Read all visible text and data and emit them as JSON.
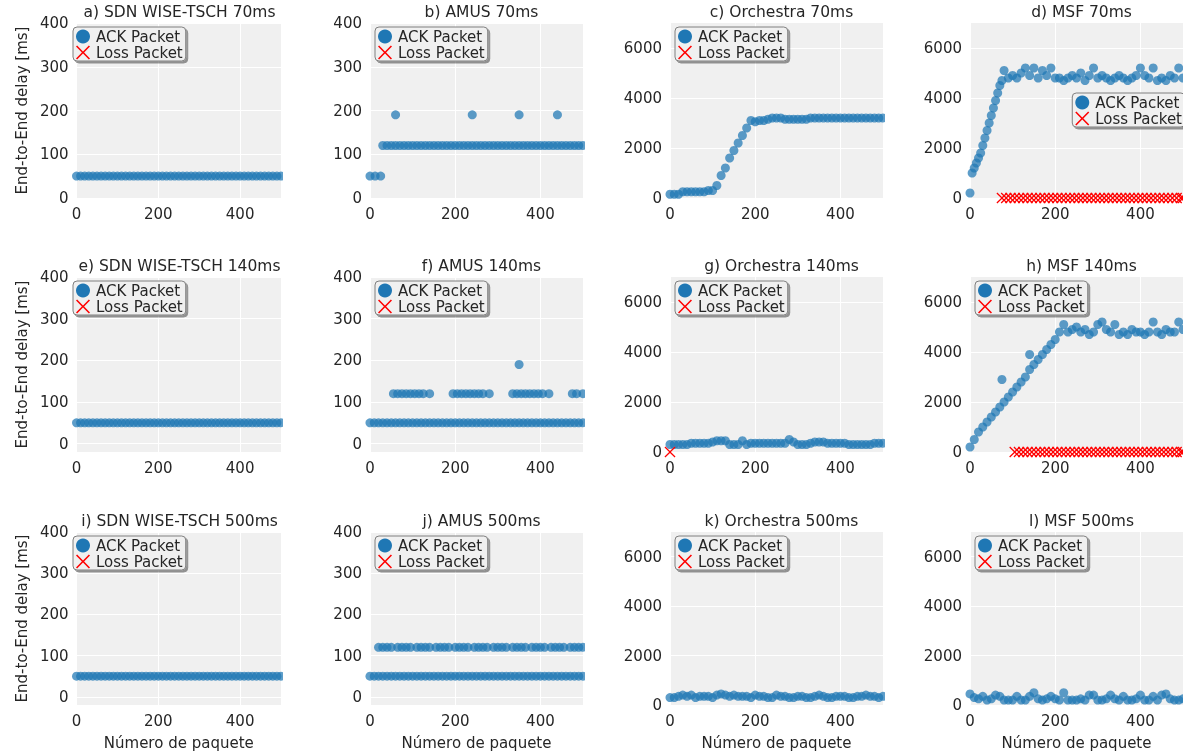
{
  "chart_data": [
    {
      "type": "scatter",
      "title": "a) SDN WISE-TSCH 70ms",
      "ylabel": "End-to-End delay [ms]",
      "xlim": [
        0,
        500
      ],
      "xticks": [
        0,
        200,
        400
      ],
      "ylim": [
        0,
        400
      ],
      "yticks": [
        0,
        100,
        200,
        300,
        400
      ],
      "grid": true,
      "legend": "top left",
      "series": [
        {
          "name": "ACK Packet",
          "color": "#1f77b4",
          "marker": "circle",
          "x": [
            0,
            10,
            20,
            30,
            40,
            50,
            60,
            70,
            80,
            90,
            100,
            110,
            120,
            130,
            140,
            150,
            160,
            170,
            180,
            190,
            200,
            210,
            220,
            230,
            240,
            250,
            260,
            270,
            280,
            290,
            300,
            310,
            320,
            330,
            340,
            350,
            360,
            370,
            380,
            390,
            400,
            410,
            420,
            430,
            440,
            450,
            460,
            470,
            480,
            490,
            500
          ],
          "values": [
            50,
            50,
            50,
            50,
            50,
            50,
            50,
            50,
            50,
            50,
            50,
            50,
            50,
            50,
            50,
            50,
            50,
            50,
            50,
            50,
            50,
            50,
            50,
            50,
            50,
            50,
            50,
            50,
            50,
            50,
            50,
            50,
            50,
            50,
            50,
            50,
            50,
            50,
            50,
            50,
            50,
            50,
            50,
            50,
            50,
            50,
            50,
            50,
            50,
            50,
            50
          ]
        },
        {
          "name": "Loss Packet",
          "color": "#ff0000",
          "marker": "cross"
        }
      ]
    },
    {
      "type": "scatter",
      "title": "b) AMUS 70ms",
      "xlim": [
        0,
        500
      ],
      "xticks": [
        0,
        200,
        400
      ],
      "ylim": [
        0,
        400
      ],
      "yticks": [
        0,
        100,
        200,
        300,
        400
      ],
      "grid": true,
      "legend": "top left",
      "series": [
        {
          "name": "ACK Packet",
          "color": "#1f77b4",
          "marker": "circle",
          "x": [
            0,
            12,
            25,
            30,
            40,
            50,
            60,
            70,
            80,
            90,
            100,
            110,
            120,
            130,
            140,
            150,
            160,
            170,
            180,
            190,
            200,
            210,
            220,
            230,
            240,
            250,
            260,
            270,
            280,
            290,
            300,
            310,
            320,
            330,
            340,
            350,
            360,
            370,
            380,
            390,
            400,
            410,
            420,
            430,
            440,
            450,
            460,
            470,
            480,
            490,
            500,
            60,
            240,
            350,
            440
          ],
          "values": [
            50,
            50,
            50,
            120,
            120,
            120,
            120,
            120,
            120,
            120,
            120,
            120,
            120,
            120,
            120,
            120,
            120,
            120,
            120,
            120,
            120,
            120,
            120,
            120,
            120,
            120,
            120,
            120,
            120,
            120,
            120,
            120,
            120,
            120,
            120,
            120,
            120,
            120,
            120,
            120,
            120,
            120,
            120,
            120,
            120,
            120,
            120,
            120,
            120,
            120,
            120,
            190,
            190,
            190,
            190
          ]
        },
        {
          "name": "Loss Packet",
          "color": "#ff0000",
          "marker": "cross"
        }
      ]
    },
    {
      "type": "scatter",
      "title": "c) Orchestra 70ms",
      "xlim": [
        0,
        500
      ],
      "xticks": [
        0,
        200,
        400
      ],
      "ylim": [
        0,
        7000
      ],
      "yticks": [
        0,
        2000,
        4000,
        6000
      ],
      "grid": true,
      "legend": "top left",
      "series": [
        {
          "name": "ACK Packet",
          "color": "#1f77b4",
          "marker": "circle",
          "x": [
            0,
            10,
            20,
            30,
            40,
            50,
            60,
            70,
            80,
            90,
            100,
            110,
            120,
            130,
            140,
            150,
            160,
            170,
            180,
            190,
            200,
            210,
            220,
            230,
            240,
            250,
            260,
            270,
            280,
            290,
            300,
            310,
            320,
            330,
            340,
            350,
            360,
            370,
            380,
            390,
            400,
            410,
            420,
            430,
            440,
            450,
            460,
            470,
            480,
            490,
            500
          ],
          "values": [
            150,
            150,
            150,
            250,
            250,
            250,
            250,
            250,
            250,
            300,
            300,
            500,
            900,
            1200,
            1600,
            1900,
            2200,
            2500,
            2800,
            3100,
            3050,
            3100,
            3100,
            3150,
            3200,
            3200,
            3200,
            3150,
            3150,
            3150,
            3150,
            3150,
            3150,
            3200,
            3200,
            3200,
            3200,
            3200,
            3200,
            3200,
            3200,
            3200,
            3200,
            3200,
            3200,
            3200,
            3200,
            3200,
            3200,
            3200,
            3200
          ]
        },
        {
          "name": "Loss Packet",
          "color": "#ff0000",
          "marker": "cross"
        }
      ]
    },
    {
      "type": "scatter",
      "title": "d) MSF 70ms",
      "xlim": [
        0,
        500
      ],
      "xticks": [
        0,
        200,
        400
      ],
      "ylim": [
        0,
        7000
      ],
      "yticks": [
        0,
        2000,
        4000,
        6000
      ],
      "grid": true,
      "legend": "right",
      "series": [
        {
          "name": "ACK Packet",
          "color": "#1f77b4",
          "marker": "circle",
          "x": [
            0,
            5,
            10,
            15,
            20,
            25,
            30,
            35,
            40,
            45,
            50,
            55,
            60,
            65,
            70,
            75,
            80,
            90,
            100,
            110,
            120,
            130,
            140,
            150,
            160,
            170,
            180,
            190,
            200,
            210,
            220,
            230,
            240,
            250,
            260,
            270,
            280,
            290,
            300,
            310,
            320,
            330,
            340,
            350,
            360,
            370,
            380,
            390,
            400,
            410,
            420,
            430,
            440,
            450,
            460,
            470,
            480,
            490,
            500
          ],
          "values": [
            200,
            1000,
            1200,
            1400,
            1600,
            1800,
            2100,
            2400,
            2700,
            3000,
            3300,
            3600,
            3900,
            4200,
            4500,
            4700,
            5100,
            4800,
            4900,
            4800,
            5000,
            5200,
            4900,
            5200,
            4800,
            5100,
            4900,
            5200,
            4800,
            4800,
            4700,
            4800,
            4900,
            4800,
            5000,
            4700,
            4900,
            5200,
            4800,
            4900,
            4800,
            4700,
            4800,
            4900,
            4800,
            4700,
            4800,
            4900,
            5200,
            4900,
            4800,
            5200,
            4700,
            4800,
            4700,
            4900,
            4800,
            5200,
            4800
          ]
        },
        {
          "name": "Loss Packet",
          "color": "#ff0000",
          "marker": "cross",
          "x": [
            75,
            85,
            95,
            105,
            115,
            125,
            135,
            145,
            155,
            165,
            175,
            185,
            195,
            205,
            215,
            225,
            235,
            245,
            255,
            265,
            275,
            285,
            295,
            305,
            315,
            325,
            335,
            345,
            355,
            365,
            375,
            385,
            395,
            405,
            415,
            425,
            435,
            445,
            455,
            465,
            475,
            485,
            495,
            500
          ],
          "values": [
            0,
            0,
            0,
            0,
            0,
            0,
            0,
            0,
            0,
            0,
            0,
            0,
            0,
            0,
            0,
            0,
            0,
            0,
            0,
            0,
            0,
            0,
            0,
            0,
            0,
            0,
            0,
            0,
            0,
            0,
            0,
            0,
            0,
            0,
            0,
            0,
            0,
            0,
            0,
            0,
            0,
            0,
            0,
            0
          ]
        }
      ]
    },
    {
      "type": "scatter",
      "title": "e) SDN WISE-TSCH 140ms",
      "ylabel": "End-to-End delay [ms]",
      "xlim": [
        0,
        500
      ],
      "xticks": [
        0,
        200,
        400
      ],
      "ylim": [
        -20,
        400
      ],
      "yticks": [
        0,
        100,
        200,
        300,
        400
      ],
      "grid": true,
      "legend": "top left",
      "series": [
        {
          "name": "ACK Packet",
          "color": "#1f77b4",
          "marker": "circle",
          "x": [
            0,
            10,
            20,
            30,
            40,
            50,
            60,
            70,
            80,
            90,
            100,
            110,
            120,
            130,
            140,
            150,
            160,
            170,
            180,
            190,
            200,
            210,
            220,
            230,
            240,
            250,
            260,
            270,
            280,
            290,
            300,
            310,
            320,
            330,
            340,
            350,
            360,
            370,
            380,
            390,
            400,
            410,
            420,
            430,
            440,
            450,
            460,
            470,
            480,
            490,
            500
          ],
          "values": [
            50,
            50,
            50,
            50,
            50,
            50,
            50,
            50,
            50,
            50,
            50,
            50,
            50,
            50,
            50,
            50,
            50,
            50,
            50,
            50,
            50,
            50,
            50,
            50,
            50,
            50,
            50,
            50,
            50,
            50,
            50,
            50,
            50,
            50,
            50,
            50,
            50,
            50,
            50,
            50,
            50,
            50,
            50,
            50,
            50,
            50,
            50,
            50,
            50,
            50,
            50
          ]
        },
        {
          "name": "Loss Packet",
          "color": "#ff0000",
          "marker": "cross"
        }
      ]
    },
    {
      "type": "scatter",
      "title": "f) AMUS 140ms",
      "xlim": [
        0,
        500
      ],
      "xticks": [
        0,
        200,
        400
      ],
      "ylim": [
        -20,
        400
      ],
      "yticks": [
        0,
        100,
        200,
        300,
        400
      ],
      "grid": true,
      "legend": "top left",
      "series": [
        {
          "name": "ACK Packet",
          "color": "#1f77b4",
          "marker": "circle",
          "x": [
            0,
            10,
            20,
            30,
            40,
            50,
            60,
            70,
            80,
            90,
            100,
            110,
            120,
            130,
            140,
            150,
            160,
            170,
            180,
            190,
            200,
            210,
            220,
            230,
            240,
            250,
            260,
            270,
            280,
            290,
            300,
            310,
            320,
            330,
            340,
            350,
            360,
            370,
            380,
            390,
            400,
            410,
            420,
            430,
            440,
            450,
            460,
            470,
            480,
            490,
            500,
            55,
            65,
            75,
            85,
            95,
            105,
            115,
            125,
            140,
            195,
            205,
            215,
            225,
            235,
            245,
            255,
            265,
            280,
            335,
            345,
            355,
            365,
            375,
            385,
            395,
            405,
            420,
            475,
            485,
            500,
            350
          ],
          "values": [
            50,
            50,
            50,
            50,
            50,
            50,
            50,
            50,
            50,
            50,
            50,
            50,
            50,
            50,
            50,
            50,
            50,
            50,
            50,
            50,
            50,
            50,
            50,
            50,
            50,
            50,
            50,
            50,
            50,
            50,
            50,
            50,
            50,
            50,
            50,
            50,
            50,
            50,
            50,
            50,
            50,
            50,
            50,
            50,
            50,
            50,
            50,
            50,
            50,
            50,
            50,
            120,
            120,
            120,
            120,
            120,
            120,
            120,
            120,
            120,
            120,
            120,
            120,
            120,
            120,
            120,
            120,
            120,
            120,
            120,
            120,
            120,
            120,
            120,
            120,
            120,
            120,
            120,
            120,
            120,
            120,
            190
          ]
        },
        {
          "name": "Loss Packet",
          "color": "#ff0000",
          "marker": "cross"
        }
      ]
    },
    {
      "type": "scatter",
      "title": "g) Orchestra 140ms",
      "xlim": [
        0,
        500
      ],
      "xticks": [
        0,
        200,
        400
      ],
      "ylim": [
        0,
        7000
      ],
      "yticks": [
        0,
        2000,
        4000,
        6000
      ],
      "grid": true,
      "legend": "top left",
      "series": [
        {
          "name": "ACK Packet",
          "color": "#1f77b4",
          "marker": "circle",
          "x": [
            0,
            10,
            20,
            30,
            40,
            50,
            60,
            70,
            80,
            90,
            100,
            110,
            120,
            130,
            140,
            150,
            160,
            170,
            180,
            190,
            200,
            210,
            220,
            230,
            240,
            250,
            260,
            270,
            280,
            290,
            300,
            310,
            320,
            330,
            340,
            350,
            360,
            370,
            380,
            390,
            400,
            410,
            420,
            430,
            440,
            450,
            460,
            470,
            480,
            490,
            500
          ],
          "values": [
            300,
            300,
            300,
            300,
            300,
            350,
            350,
            350,
            350,
            350,
            400,
            450,
            450,
            450,
            300,
            300,
            300,
            450,
            300,
            350,
            350,
            350,
            350,
            350,
            350,
            350,
            350,
            350,
            500,
            400,
            300,
            300,
            300,
            350,
            400,
            400,
            400,
            350,
            350,
            350,
            350,
            350,
            300,
            300,
            300,
            300,
            300,
            300,
            350,
            350,
            350
          ]
        },
        {
          "name": "Loss Packet",
          "color": "#ff0000",
          "marker": "cross",
          "x": [
            0
          ],
          "values": [
            0
          ]
        }
      ]
    },
    {
      "type": "scatter",
      "title": "h) MSF 140ms",
      "xlim": [
        0,
        500
      ],
      "xticks": [
        0,
        200,
        400
      ],
      "ylim": [
        0,
        7000
      ],
      "yticks": [
        0,
        2000,
        4000,
        6000
      ],
      "grid": true,
      "legend": "top left",
      "series": [
        {
          "name": "ACK Packet",
          "color": "#1f77b4",
          "marker": "circle",
          "x": [
            0,
            10,
            20,
            30,
            40,
            50,
            60,
            70,
            80,
            90,
            100,
            110,
            120,
            130,
            140,
            150,
            160,
            170,
            180,
            190,
            200,
            210,
            220,
            230,
            240,
            250,
            260,
            270,
            280,
            290,
            300,
            310,
            320,
            330,
            340,
            350,
            360,
            370,
            380,
            390,
            400,
            410,
            420,
            430,
            440,
            450,
            460,
            470,
            480,
            490,
            500,
            75,
            140
          ],
          "values": [
            200,
            500,
            800,
            1000,
            1200,
            1400,
            1600,
            1800,
            2000,
            2200,
            2400,
            2600,
            2800,
            3000,
            3300,
            3500,
            3700,
            3900,
            4100,
            4300,
            4500,
            4800,
            5100,
            4800,
            4900,
            5000,
            4800,
            4900,
            4700,
            4800,
            5100,
            5200,
            4900,
            4800,
            5100,
            4700,
            4800,
            4700,
            4900,
            4800,
            4800,
            4700,
            4800,
            5200,
            4800,
            4700,
            4900,
            4800,
            4800,
            5200,
            4900,
            2900,
            3900
          ]
        },
        {
          "name": "Loss Packet",
          "color": "#ff0000",
          "marker": "cross",
          "x": [
            105,
            115,
            125,
            135,
            145,
            155,
            165,
            175,
            185,
            195,
            205,
            215,
            225,
            235,
            245,
            255,
            265,
            275,
            285,
            295,
            305,
            315,
            325,
            335,
            345,
            355,
            365,
            375,
            385,
            395,
            405,
            415,
            425,
            435,
            445,
            455,
            465,
            475,
            485,
            495,
            500
          ],
          "values": [
            0,
            0,
            0,
            0,
            0,
            0,
            0,
            0,
            0,
            0,
            0,
            0,
            0,
            0,
            0,
            0,
            0,
            0,
            0,
            0,
            0,
            0,
            0,
            0,
            0,
            0,
            0,
            0,
            0,
            0,
            0,
            0,
            0,
            0,
            0,
            0,
            0,
            0,
            0,
            0,
            0
          ]
        }
      ]
    },
    {
      "type": "scatter",
      "title": "i) SDN WISE-TSCH 500ms",
      "ylabel": "End-to-End delay [ms]",
      "xlabel": "Número de paquete",
      "xlim": [
        0,
        500
      ],
      "xticks": [
        0,
        200,
        400
      ],
      "ylim": [
        -20,
        400
      ],
      "yticks": [
        0,
        100,
        200,
        300,
        400
      ],
      "grid": true,
      "legend": "top left",
      "series": [
        {
          "name": "ACK Packet",
          "color": "#1f77b4",
          "marker": "circle",
          "x": [
            0,
            10,
            20,
            30,
            40,
            50,
            60,
            70,
            80,
            90,
            100,
            110,
            120,
            130,
            140,
            150,
            160,
            170,
            180,
            190,
            200,
            210,
            220,
            230,
            240,
            250,
            260,
            270,
            280,
            290,
            300,
            310,
            320,
            330,
            340,
            350,
            360,
            370,
            380,
            390,
            400,
            410,
            420,
            430,
            440,
            450,
            460,
            470,
            480,
            490,
            500
          ],
          "values": [
            50,
            50,
            50,
            50,
            50,
            50,
            50,
            50,
            50,
            50,
            50,
            50,
            50,
            50,
            50,
            50,
            50,
            50,
            50,
            50,
            50,
            50,
            50,
            50,
            50,
            50,
            50,
            50,
            50,
            50,
            50,
            50,
            50,
            50,
            50,
            50,
            50,
            50,
            50,
            50,
            50,
            50,
            50,
            50,
            50,
            50,
            50,
            50,
            50,
            50,
            50
          ]
        },
        {
          "name": "Loss Packet",
          "color": "#ff0000",
          "marker": "cross"
        }
      ]
    },
    {
      "type": "scatter",
      "title": "j) AMUS 500ms",
      "xlabel": "Número de paquete",
      "xlim": [
        0,
        500
      ],
      "xticks": [
        0,
        200,
        400
      ],
      "ylim": [
        -20,
        400
      ],
      "yticks": [
        0,
        100,
        200,
        300,
        400
      ],
      "grid": true,
      "legend": "top left",
      "series": [
        {
          "name": "ACK Packet",
          "color": "#1f77b4",
          "marker": "circle",
          "x": [
            0,
            10,
            20,
            30,
            40,
            50,
            60,
            70,
            80,
            90,
            100,
            110,
            120,
            130,
            140,
            150,
            160,
            170,
            180,
            190,
            200,
            210,
            220,
            230,
            240,
            250,
            260,
            270,
            280,
            290,
            300,
            310,
            320,
            330,
            340,
            350,
            360,
            370,
            380,
            390,
            400,
            410,
            420,
            430,
            440,
            450,
            460,
            470,
            480,
            490,
            500,
            20,
            30,
            40,
            50,
            65,
            75,
            85,
            95,
            110,
            120,
            130,
            140,
            155,
            165,
            175,
            185,
            200,
            210,
            220,
            230,
            245,
            255,
            265,
            275,
            290,
            300,
            310,
            320,
            335,
            345,
            355,
            365,
            380,
            390,
            400,
            410,
            425,
            435,
            445,
            455,
            470,
            480,
            490,
            500
          ],
          "values": [
            50,
            50,
            50,
            50,
            50,
            50,
            50,
            50,
            50,
            50,
            50,
            50,
            50,
            50,
            50,
            50,
            50,
            50,
            50,
            50,
            50,
            50,
            50,
            50,
            50,
            50,
            50,
            50,
            50,
            50,
            50,
            50,
            50,
            50,
            50,
            50,
            50,
            50,
            50,
            50,
            50,
            50,
            50,
            50,
            50,
            50,
            50,
            50,
            50,
            50,
            50,
            120,
            120,
            120,
            120,
            120,
            120,
            120,
            120,
            120,
            120,
            120,
            120,
            120,
            120,
            120,
            120,
            120,
            120,
            120,
            120,
            120,
            120,
            120,
            120,
            120,
            120,
            120,
            120,
            120,
            120,
            120,
            120,
            120,
            120,
            120,
            120,
            120,
            120,
            120,
            120,
            120,
            120,
            120,
            120
          ]
        },
        {
          "name": "Loss Packet",
          "color": "#ff0000",
          "marker": "cross"
        }
      ]
    },
    {
      "type": "scatter",
      "title": "k) Orchestra 500ms",
      "xlabel": "Número de paquete",
      "xlim": [
        0,
        500
      ],
      "xticks": [
        0,
        200,
        400
      ],
      "ylim": [
        0,
        7000
      ],
      "yticks": [
        0,
        2000,
        4000,
        6000
      ],
      "grid": true,
      "legend": "top left",
      "series": [
        {
          "name": "ACK Packet",
          "color": "#1f77b4",
          "marker": "circle",
          "x": [
            0,
            10,
            20,
            30,
            40,
            50,
            60,
            70,
            80,
            90,
            100,
            110,
            120,
            130,
            140,
            150,
            160,
            170,
            180,
            190,
            200,
            210,
            220,
            230,
            240,
            250,
            260,
            270,
            280,
            290,
            300,
            310,
            320,
            330,
            340,
            350,
            360,
            370,
            380,
            390,
            400,
            410,
            420,
            430,
            440,
            450,
            460,
            470,
            480,
            490,
            500
          ],
          "values": [
            300,
            300,
            350,
            400,
            350,
            400,
            300,
            350,
            350,
            350,
            300,
            400,
            450,
            400,
            350,
            400,
            350,
            350,
            350,
            300,
            400,
            350,
            350,
            300,
            300,
            400,
            350,
            350,
            300,
            300,
            350,
            350,
            300,
            300,
            350,
            400,
            350,
            300,
            300,
            350,
            350,
            350,
            300,
            300,
            350,
            350,
            400,
            350,
            350,
            300,
            350
          ]
        },
        {
          "name": "Loss Packet",
          "color": "#ff0000",
          "marker": "cross"
        }
      ]
    },
    {
      "type": "scatter",
      "title": "l) MSF 500ms",
      "xlabel": "Número de paquete",
      "xlim": [
        0,
        500
      ],
      "xticks": [
        0,
        200,
        400
      ],
      "ylim": [
        0,
        7000
      ],
      "yticks": [
        0,
        2000,
        4000,
        6000
      ],
      "grid": true,
      "legend": "top left",
      "series": [
        {
          "name": "ACK Packet",
          "color": "#1f77b4",
          "marker": "circle",
          "x": [
            0,
            10,
            20,
            30,
            40,
            50,
            60,
            70,
            80,
            90,
            100,
            110,
            120,
            130,
            140,
            150,
            160,
            170,
            180,
            190,
            200,
            210,
            220,
            230,
            240,
            250,
            260,
            270,
            280,
            290,
            300,
            310,
            320,
            330,
            340,
            350,
            360,
            370,
            380,
            390,
            400,
            410,
            420,
            430,
            440,
            450,
            460,
            470,
            480,
            490,
            500
          ],
          "values": [
            450,
            300,
            250,
            350,
            200,
            250,
            400,
            350,
            200,
            200,
            200,
            350,
            200,
            200,
            350,
            500,
            250,
            200,
            250,
            350,
            250,
            200,
            500,
            200,
            200,
            200,
            250,
            200,
            400,
            400,
            200,
            200,
            250,
            400,
            250,
            200,
            350,
            200,
            200,
            250,
            400,
            200,
            200,
            350,
            200,
            400,
            450,
            250,
            200,
            200,
            250
          ]
        },
        {
          "name": "Loss Packet",
          "color": "#ff0000",
          "marker": "cross"
        }
      ]
    }
  ]
}
